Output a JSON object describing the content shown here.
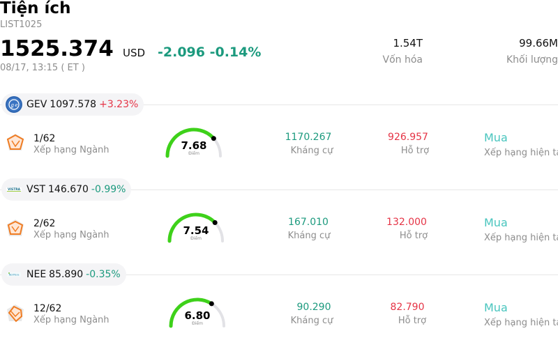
{
  "header": {
    "title": "Tiện ích",
    "code": "LIST1025",
    "price": "1525.374",
    "currency": "USD",
    "change": "-2.096 -0.14%",
    "timestamp": "08/17, 13:15  ( ET )",
    "stats": [
      {
        "value": "1.54T",
        "label": "Vốn hóa"
      },
      {
        "value": "99.66M",
        "label": "Khối lượng"
      }
    ]
  },
  "colors": {
    "up": "#e53446",
    "down": "#1c9a7e",
    "rating": "#48c5be",
    "gauge": "#3ed11a"
  },
  "stocks": [
    {
      "symbol": "GEV",
      "price": "1097.578",
      "change": "+3.23%",
      "direction": "up",
      "logo": "ge-vernova-logo",
      "rank": "1/62",
      "rank_label": "Xếp hạng Ngành",
      "score": 7.68,
      "score_text": "7.68",
      "score_label": "Điểm",
      "resistance": "1170.267",
      "resistance_label": "Kháng cự",
      "support": "926.957",
      "support_label": "Hỗ trợ",
      "rating": "Mua",
      "rating_label": "Xếp hạng hiện tại"
    },
    {
      "symbol": "VST",
      "price": "146.670",
      "change": "-0.99%",
      "direction": "down",
      "logo": "vistra-logo",
      "rank": "2/62",
      "rank_label": "Xếp hạng Ngành",
      "score": 7.54,
      "score_text": "7.54",
      "score_label": "Điểm",
      "resistance": "167.010",
      "resistance_label": "Kháng cự",
      "support": "132.000",
      "support_label": "Hỗ trợ",
      "rating": "Mua",
      "rating_label": "Xếp hạng hiện tại"
    },
    {
      "symbol": "NEE",
      "price": "85.890",
      "change": "-0.35%",
      "direction": "down",
      "logo": "nextera-logo",
      "rank": "12/62",
      "rank_label": "Xếp hạng Ngành",
      "score": 6.8,
      "score_text": "6.80",
      "score_label": "Điểm",
      "resistance": "90.290",
      "resistance_label": "Kháng cự",
      "support": "82.790",
      "support_label": "Hỗ trợ",
      "rating": "Mua",
      "rating_label": "Xếp hạng hiện tại"
    }
  ]
}
